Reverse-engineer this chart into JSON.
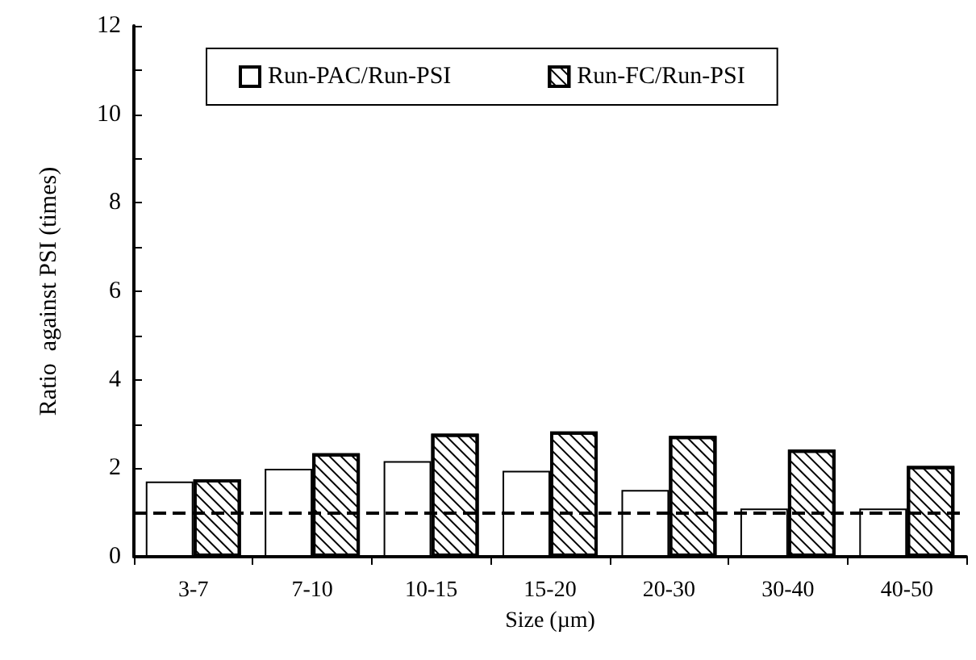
{
  "chart_data": {
    "type": "bar",
    "xlabel": "Size (µm)",
    "ylabel": "Ratio  against PSI (times)",
    "categories": [
      "3-7",
      "7-10",
      "10-15",
      "15-20",
      "20-30",
      "30-40",
      "40-50"
    ],
    "series": [
      {
        "name": "Run-PAC/Run-PSI",
        "color": "#ffffff",
        "values": [
          1.7,
          1.99,
          2.16,
          1.94,
          1.51,
          1.09,
          1.09
        ]
      },
      {
        "name": "Run-FC/Run-PSI",
        "color": "#000000",
        "values": [
          1.75,
          2.34,
          2.78,
          2.83,
          2.73,
          2.42,
          2.05
        ]
      }
    ],
    "ylim": [
      0,
      12
    ],
    "yticks": [
      0,
      {
        "value": 1,
        "label": null
      },
      2,
      {
        "value": 3,
        "label": null
      },
      4,
      {
        "value": 5,
        "label": null
      },
      6,
      {
        "value": 7,
        "label": null
      },
      8,
      {
        "value": 9,
        "label": null
      },
      10,
      {
        "value": 11,
        "label": null
      },
      12
    ],
    "ref_lines": [
      {
        "axis": "y",
        "value": 1,
        "line_style": "dashed",
        "color": "#000000"
      }
    ],
    "grid": false,
    "legend": "top"
  }
}
